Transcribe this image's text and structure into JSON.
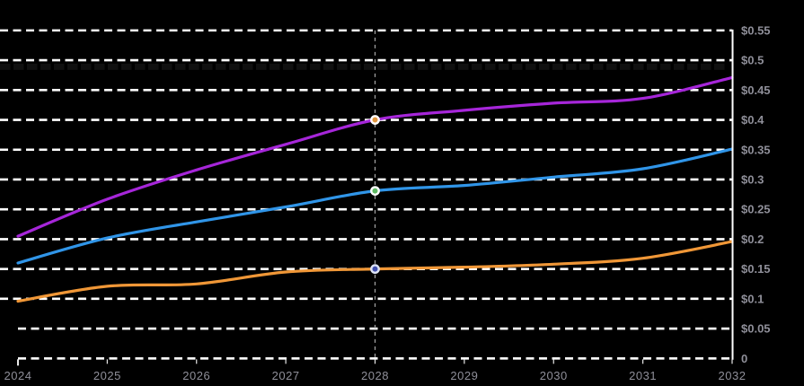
{
  "chart_data": {
    "type": "line",
    "title": "",
    "xlabel": "",
    "ylabel": "",
    "background": "#000000",
    "grid": "horizontal-dashed-white",
    "legend": "none",
    "x": [
      2024,
      2025,
      2026,
      2027,
      2028,
      2029,
      2030,
      2031,
      2032
    ],
    "xlim": [
      2024,
      2032
    ],
    "ylim": [
      0,
      0.586
    ],
    "x_ticks": [
      {
        "value": 2024,
        "label": "2024"
      },
      {
        "value": 2025,
        "label": "2025"
      },
      {
        "value": 2026,
        "label": "2026"
      },
      {
        "value": 2027,
        "label": "2027"
      },
      {
        "value": 2028,
        "label": "2028"
      },
      {
        "value": 2029,
        "label": "2029"
      },
      {
        "value": 2030,
        "label": "2030"
      },
      {
        "value": 2031,
        "label": "2031"
      },
      {
        "value": 2032,
        "label": "2032"
      }
    ],
    "y_ticks": [
      {
        "value": 0.55,
        "label": "$0.55"
      },
      {
        "value": 0.5,
        "label": "$0.5"
      },
      {
        "value": 0.45,
        "label": "$0.45"
      },
      {
        "value": 0.4,
        "label": "$0.4"
      },
      {
        "value": 0.35,
        "label": "$0.35"
      },
      {
        "value": 0.3,
        "label": "$0.3"
      },
      {
        "value": 0.25,
        "label": "$0.25"
      },
      {
        "value": 0.2,
        "label": "$0.2"
      },
      {
        "value": 0.15,
        "label": "$0.15"
      },
      {
        "value": 0.1,
        "label": "$0.1"
      },
      {
        "value": 0.05,
        "label": "$0.05"
      },
      {
        "value": 0,
        "label": "0"
      }
    ],
    "series": [
      {
        "name": "purple-line",
        "color": "#a626d9",
        "values": [
          0.205,
          0.267,
          0.316,
          0.359,
          0.4,
          0.416,
          0.428,
          0.436,
          0.471
        ]
      },
      {
        "name": "blue-line",
        "color": "#3095e8",
        "values": [
          0.16,
          0.202,
          0.229,
          0.254,
          0.281,
          0.29,
          0.304,
          0.318,
          0.351
        ]
      },
      {
        "name": "orange-line",
        "color": "#f09737",
        "values": [
          0.096,
          0.121,
          0.125,
          0.145,
          0.15,
          0.153,
          0.158,
          0.168,
          0.196
        ]
      }
    ],
    "crosshair": {
      "x": 2028,
      "line_color": "#a0a0a0",
      "markers": [
        {
          "series": "purple-line",
          "value": 0.4,
          "fill": "#e0963f",
          "ring": "#ffffff"
        },
        {
          "series": "blue-line",
          "value": 0.281,
          "fill": "#5fb863",
          "ring": "#ffffff"
        },
        {
          "series": "orange-line",
          "value": 0.15,
          "fill": "#4050b0",
          "ring": "#dde3f5"
        }
      ]
    },
    "annotation_line": {
      "value": 0.489,
      "color": "#101010",
      "style": "thick-dashed"
    },
    "colors": {
      "grid": "#ffffff",
      "axis": "#ffffff",
      "tick_label": "#8f8f99",
      "crosshair": "#a0a0a0"
    }
  }
}
